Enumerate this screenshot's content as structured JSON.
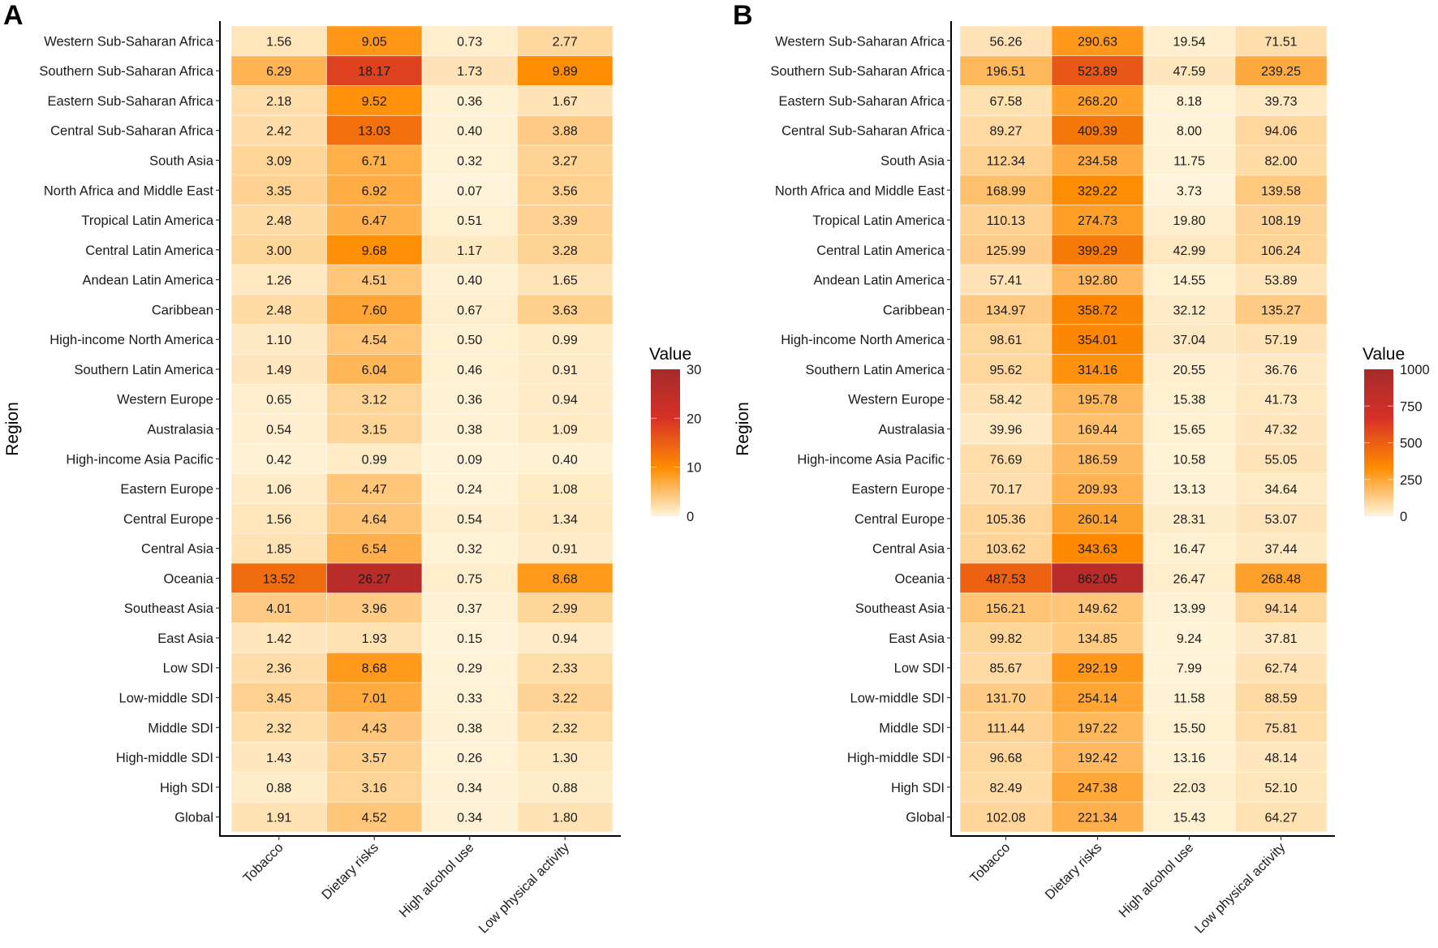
{
  "chart_data": [
    {
      "type": "heatmap",
      "panel": "A",
      "title": "",
      "xlabel": "",
      "ylabel": "Region",
      "categories": [
        "Tobacco",
        "Dietary risks",
        "High alcohol use",
        "Low physical activity"
      ],
      "rows": [
        "Western Sub-Saharan Africa",
        "Southern Sub-Saharan Africa",
        "Eastern Sub-Saharan Africa",
        "Central Sub-Saharan Africa",
        "South Asia",
        "North Africa and Middle East",
        "Tropical Latin America",
        "Central Latin America",
        "Andean Latin America",
        "Caribbean",
        "High-income North America",
        "Southern Latin America",
        "Western Europe",
        "Australasia",
        "High-income Asia Pacific",
        "Eastern Europe",
        "Central Europe",
        "Central Asia",
        "Oceania",
        "Southeast Asia",
        "East Asia",
        "Low SDI",
        "Low-middle SDI",
        "Middle SDI",
        "High-middle SDI",
        "High SDI",
        "Global"
      ],
      "values": [
        [
          1.56,
          9.05,
          0.73,
          2.77
        ],
        [
          6.29,
          18.17,
          1.73,
          9.89
        ],
        [
          2.18,
          9.52,
          0.36,
          1.67
        ],
        [
          2.42,
          13.03,
          0.4,
          3.88
        ],
        [
          3.09,
          6.71,
          0.32,
          3.27
        ],
        [
          3.35,
          6.92,
          0.07,
          3.56
        ],
        [
          2.48,
          6.47,
          0.51,
          3.39
        ],
        [
          3.0,
          9.68,
          1.17,
          3.28
        ],
        [
          1.26,
          4.51,
          0.4,
          1.65
        ],
        [
          2.48,
          7.6,
          0.67,
          3.63
        ],
        [
          1.1,
          4.54,
          0.5,
          0.99
        ],
        [
          1.49,
          6.04,
          0.46,
          0.91
        ],
        [
          0.65,
          3.12,
          0.36,
          0.94
        ],
        [
          0.54,
          3.15,
          0.38,
          1.09
        ],
        [
          0.42,
          0.99,
          0.09,
          0.4
        ],
        [
          1.06,
          4.47,
          0.24,
          1.08
        ],
        [
          1.56,
          4.64,
          0.54,
          1.34
        ],
        [
          1.85,
          6.54,
          0.32,
          0.91
        ],
        [
          13.52,
          26.27,
          0.75,
          8.68
        ],
        [
          4.01,
          3.96,
          0.37,
          2.99
        ],
        [
          1.42,
          1.93,
          0.15,
          0.94
        ],
        [
          2.36,
          8.68,
          0.29,
          2.33
        ],
        [
          3.45,
          7.01,
          0.33,
          3.22
        ],
        [
          2.32,
          4.43,
          0.38,
          2.32
        ],
        [
          1.43,
          3.57,
          0.26,
          1.3
        ],
        [
          0.88,
          3.16,
          0.34,
          0.88
        ],
        [
          1.91,
          4.52,
          0.34,
          1.8
        ]
      ],
      "labels_text": [
        [
          "1.56",
          "9.05",
          "0.73",
          "2.77"
        ],
        [
          "6.29",
          "18.17",
          "1.73",
          "9.89"
        ],
        [
          "2.18",
          "9.52",
          "0.36",
          "1.67"
        ],
        [
          "2.42",
          "13.03",
          "0.40",
          "3.88"
        ],
        [
          "3.09",
          "6.71",
          "0.32",
          "3.27"
        ],
        [
          "3.35",
          "6.92",
          "0.07",
          "3.56"
        ],
        [
          "2.48",
          "6.47",
          "0.51",
          "3.39"
        ],
        [
          "3.00",
          "9.68",
          "1.17",
          "3.28"
        ],
        [
          "1.26",
          "4.51",
          "0.40",
          "1.65"
        ],
        [
          "2.48",
          "7.60",
          "0.67",
          "3.63"
        ],
        [
          "1.10",
          "4.54",
          "0.50",
          "0.99"
        ],
        [
          "1.49",
          "6.04",
          "0.46",
          "0.91"
        ],
        [
          "0.65",
          "3.12",
          "0.36",
          "0.94"
        ],
        [
          "0.54",
          "3.15",
          "0.38",
          "1.09"
        ],
        [
          "0.42",
          "0.99",
          "0.09",
          "0.40"
        ],
        [
          "1.06",
          "4.47",
          "0.24",
          "1.08"
        ],
        [
          "1.56",
          "4.64",
          "0.54",
          "1.34"
        ],
        [
          "1.85",
          "6.54",
          "0.32",
          "0.91"
        ],
        [
          "13.52",
          "26.27",
          "0.75",
          "8.68"
        ],
        [
          "4.01",
          "3.96",
          "0.37",
          "2.99"
        ],
        [
          "1.42",
          "1.93",
          "0.15",
          "0.94"
        ],
        [
          "2.36",
          "8.68",
          "0.29",
          "2.33"
        ],
        [
          "3.45",
          "7.01",
          "0.33",
          "3.22"
        ],
        [
          "2.32",
          "4.43",
          "0.38",
          "2.32"
        ],
        [
          "1.43",
          "3.57",
          "0.26",
          "1.30"
        ],
        [
          "0.88",
          "3.16",
          "0.34",
          "0.88"
        ],
        [
          "1.91",
          "4.52",
          "0.34",
          "1.80"
        ]
      ],
      "legend": {
        "title": "Value",
        "range": [
          0,
          30
        ],
        "ticks": [
          0,
          10,
          20,
          30
        ],
        "tick_labels": [
          "0",
          "10",
          "20",
          "30"
        ],
        "colors": [
          "#FFF5DC",
          "#FF8C00",
          "#D73027",
          "#A52A2A"
        ],
        "placement": "right"
      },
      "grid": false
    },
    {
      "type": "heatmap",
      "panel": "B",
      "title": "",
      "xlabel": "",
      "ylabel": "Region",
      "categories": [
        "Tobacco",
        "Dietary risks",
        "High alcohol use",
        "Low physical activity"
      ],
      "rows": [
        "Western Sub-Saharan Africa",
        "Southern Sub-Saharan Africa",
        "Eastern Sub-Saharan Africa",
        "Central Sub-Saharan Africa",
        "South Asia",
        "North Africa and Middle East",
        "Tropical Latin America",
        "Central Latin America",
        "Andean Latin America",
        "Caribbean",
        "High-income North America",
        "Southern Latin America",
        "Western Europe",
        "Australasia",
        "High-income Asia Pacific",
        "Eastern Europe",
        "Central Europe",
        "Central Asia",
        "Oceania",
        "Southeast Asia",
        "East Asia",
        "Low SDI",
        "Low-middle SDI",
        "Middle SDI",
        "High-middle SDI",
        "High SDI",
        "Global"
      ],
      "values": [
        [
          56.26,
          290.63,
          19.54,
          71.51
        ],
        [
          196.51,
          523.89,
          47.59,
          239.25
        ],
        [
          67.58,
          268.2,
          8.18,
          39.73
        ],
        [
          89.27,
          409.39,
          8.0,
          94.06
        ],
        [
          112.34,
          234.58,
          11.75,
          82.0
        ],
        [
          168.99,
          329.22,
          3.73,
          139.58
        ],
        [
          110.13,
          274.73,
          19.8,
          108.19
        ],
        [
          125.99,
          399.29,
          42.99,
          106.24
        ],
        [
          57.41,
          192.8,
          14.55,
          53.89
        ],
        [
          134.97,
          358.72,
          32.12,
          135.27
        ],
        [
          98.61,
          354.01,
          37.04,
          57.19
        ],
        [
          95.62,
          314.16,
          20.55,
          36.76
        ],
        [
          58.42,
          195.78,
          15.38,
          41.73
        ],
        [
          39.96,
          169.44,
          15.65,
          47.32
        ],
        [
          76.69,
          186.59,
          10.58,
          55.05
        ],
        [
          70.17,
          209.93,
          13.13,
          34.64
        ],
        [
          105.36,
          260.14,
          28.31,
          53.07
        ],
        [
          103.62,
          343.63,
          16.47,
          37.44
        ],
        [
          487.53,
          862.05,
          26.47,
          268.48
        ],
        [
          156.21,
          149.62,
          13.99,
          94.14
        ],
        [
          99.82,
          134.85,
          9.24,
          37.81
        ],
        [
          85.67,
          292.19,
          7.99,
          62.74
        ],
        [
          131.7,
          254.14,
          11.58,
          88.59
        ],
        [
          111.44,
          197.22,
          15.5,
          75.81
        ],
        [
          96.68,
          192.42,
          13.16,
          48.14
        ],
        [
          82.49,
          247.38,
          22.03,
          52.1
        ],
        [
          102.08,
          221.34,
          15.43,
          64.27
        ]
      ],
      "labels_text": [
        [
          "56.26",
          "290.63",
          "19.54",
          "71.51"
        ],
        [
          "196.51",
          "523.89",
          "47.59",
          "239.25"
        ],
        [
          "67.58",
          "268.20",
          "8.18",
          "39.73"
        ],
        [
          "89.27",
          "409.39",
          "8.00",
          "94.06"
        ],
        [
          "112.34",
          "234.58",
          "11.75",
          "82.00"
        ],
        [
          "168.99",
          "329.22",
          "3.73",
          "139.58"
        ],
        [
          "110.13",
          "274.73",
          "19.80",
          "108.19"
        ],
        [
          "125.99",
          "399.29",
          "42.99",
          "106.24"
        ],
        [
          "57.41",
          "192.80",
          "14.55",
          "53.89"
        ],
        [
          "134.97",
          "358.72",
          "32.12",
          "135.27"
        ],
        [
          "98.61",
          "354.01",
          "37.04",
          "57.19"
        ],
        [
          "95.62",
          "314.16",
          "20.55",
          "36.76"
        ],
        [
          "58.42",
          "195.78",
          "15.38",
          "41.73"
        ],
        [
          "39.96",
          "169.44",
          "15.65",
          "47.32"
        ],
        [
          "76.69",
          "186.59",
          "10.58",
          "55.05"
        ],
        [
          "70.17",
          "209.93",
          "13.13",
          "34.64"
        ],
        [
          "105.36",
          "260.14",
          "28.31",
          "53.07"
        ],
        [
          "103.62",
          "343.63",
          "16.47",
          "37.44"
        ],
        [
          "487.53",
          "862.05",
          "26.47",
          "268.48"
        ],
        [
          "156.21",
          "149.62",
          "13.99",
          "94.14"
        ],
        [
          "99.82",
          "134.85",
          "9.24",
          "37.81"
        ],
        [
          "85.67",
          "292.19",
          "7.99",
          "62.74"
        ],
        [
          "131.70",
          "254.14",
          "11.58",
          "88.59"
        ],
        [
          "111.44",
          "197.22",
          "15.50",
          "75.81"
        ],
        [
          "96.68",
          "192.42",
          "13.16",
          "48.14"
        ],
        [
          "82.49",
          "247.38",
          "22.03",
          "52.10"
        ],
        [
          "102.08",
          "221.34",
          "15.43",
          "64.27"
        ]
      ],
      "legend": {
        "title": "Value",
        "range": [
          0,
          1000
        ],
        "ticks": [
          0,
          250,
          500,
          750,
          1000
        ],
        "tick_labels": [
          "0",
          "250",
          "500",
          "750",
          "1000"
        ],
        "colors": [
          "#FFF5DC",
          "#FF8C00",
          "#D73027",
          "#A52A2A"
        ],
        "placement": "right"
      },
      "grid": false
    }
  ]
}
